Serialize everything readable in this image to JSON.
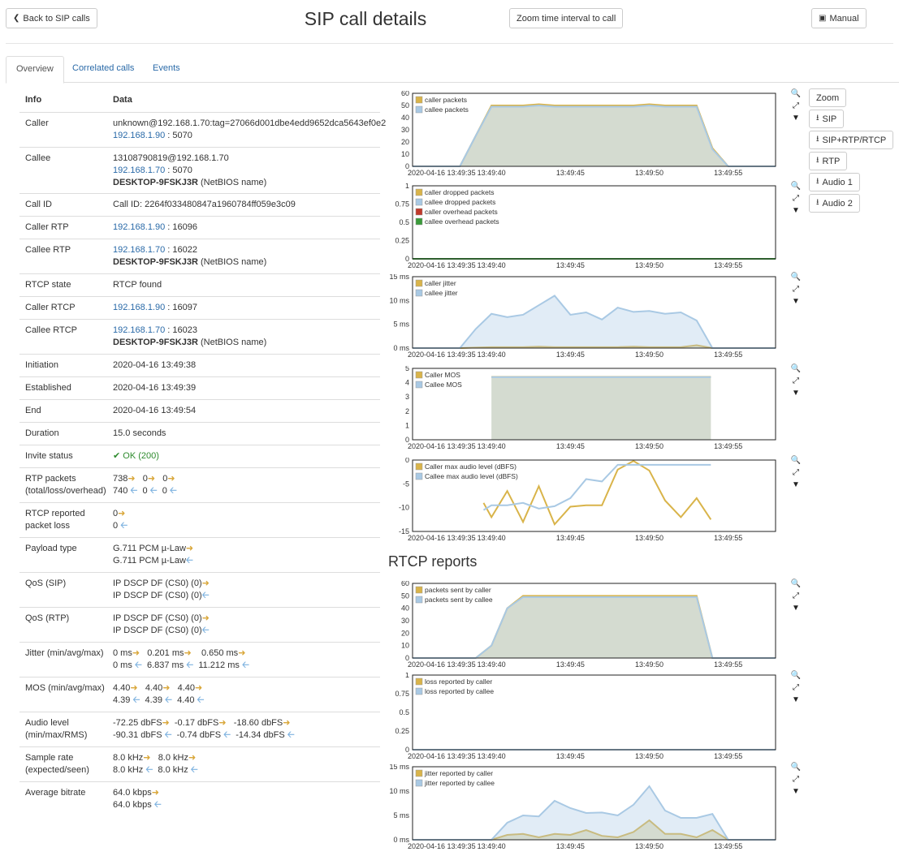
{
  "header": {
    "back_label": "Back to SIP calls",
    "title": "SIP call details",
    "zoom_label": "Zoom time interval to call",
    "manual_label": "Manual"
  },
  "tabs": [
    {
      "label": "Overview"
    },
    {
      "label": "Correlated calls"
    },
    {
      "label": "Events"
    }
  ],
  "info": {
    "head_key": "Info",
    "head_val": "Data",
    "caller": {
      "k": "Caller",
      "l1": "unknown@192.168.1.70:tag=27066d001dbe4edd9652dca5643ef0e2",
      "ip": "192.168.1.90",
      "port": " : 5070"
    },
    "callee": {
      "k": "Callee",
      "l1": "13108790819@192.168.1.70",
      "ip": "192.168.1.70",
      "port": " : 5070",
      "nb": "DESKTOP-9FSKJ3R",
      "nb_suffix": " (NetBIOS name)"
    },
    "callid": {
      "k": "Call ID",
      "v": "Call ID: 2264f033480847a1960784ff059e3c09"
    },
    "caller_rtp": {
      "k": "Caller RTP",
      "ip": "192.168.1.90",
      "port": " : 16096"
    },
    "callee_rtp": {
      "k": "Callee RTP",
      "ip": "192.168.1.70",
      "port": " : 16022",
      "nb": "DESKTOP-9FSKJ3R",
      "nb_suffix": " (NetBIOS name)"
    },
    "rtcp_state": {
      "k": "RTCP state",
      "v": "RTCP found"
    },
    "caller_rtcp": {
      "k": "Caller RTCP",
      "ip": "192.168.1.90",
      "port": " : 16097"
    },
    "callee_rtcp": {
      "k": "Callee RTCP",
      "ip": "192.168.1.70",
      "port": " : 16023",
      "nb": "DESKTOP-9FSKJ3R",
      "nb_suffix": " (NetBIOS name)"
    },
    "initiation": {
      "k": "Initiation",
      "v": "2020-04-16 13:49:38"
    },
    "established": {
      "k": "Established",
      "v": "2020-04-16 13:49:39"
    },
    "end": {
      "k": "End",
      "v": "2020-04-16 13:49:54"
    },
    "duration": {
      "k": "Duration",
      "v": "15.0 seconds"
    },
    "invite": {
      "k": "Invite status",
      "v": "OK (200)"
    },
    "rtp_packets": {
      "k1": "RTP packets",
      "k2": "(total/loss/overhead)",
      "r1": [
        "738",
        "0",
        "0"
      ],
      "r2": [
        "740",
        "0",
        "0"
      ]
    },
    "rtcp_loss": {
      "k1": "RTCP reported",
      "k2": "packet loss",
      "r1": [
        "0"
      ],
      "r2": [
        "0"
      ]
    },
    "payload": {
      "k": "Payload type",
      "r1": [
        "G.711 PCM µ-Law"
      ],
      "r2": [
        "G.711 PCM µ-Law"
      ]
    },
    "qos_sip": {
      "k": "QoS (SIP)",
      "r1": [
        "IP DSCP DF (CS0) (0)"
      ],
      "r2": [
        "IP DSCP DF (CS0) (0)"
      ]
    },
    "qos_rtp": {
      "k": "QoS (RTP)",
      "r1": [
        "IP DSCP DF (CS0) (0)"
      ],
      "r2": [
        "IP DSCP DF (CS0) (0)"
      ]
    },
    "jitter": {
      "k": "Jitter (min/avg/max)",
      "r1": [
        "0 ms",
        "0.201 ms",
        "0.650 ms"
      ],
      "r2": [
        "0 ms",
        "6.837 ms",
        "11.212 ms"
      ]
    },
    "mos": {
      "k": "MOS (min/avg/max)",
      "r1": [
        "4.40",
        "4.40",
        "4.40"
      ],
      "r2": [
        "4.39",
        "4.39",
        "4.40"
      ]
    },
    "audio": {
      "k1": "Audio level",
      "k2": "(min/max/RMS)",
      "r1": [
        "-72.25 dbFS",
        "-0.17 dbFS",
        "-18.60 dbFS"
      ],
      "r2": [
        "-90.31 dbFS",
        "-0.74 dbFS",
        "-14.34 dbFS"
      ]
    },
    "sample": {
      "k1": "Sample rate",
      "k2": "(expected/seen)",
      "r1": [
        "8.0 kHz",
        "8.0 kHz"
      ],
      "r2": [
        "8.0 kHz",
        "8.0 kHz"
      ]
    },
    "bitrate": {
      "k": "Average bitrate",
      "r1": [
        "64.0 kbps"
      ],
      "r2": [
        "64.0 kbps"
      ]
    }
  },
  "side_buttons": {
    "zoom": "Zoom",
    "sip": "SIP",
    "sip_rtp_rtcp": "SIP+RTP/RTCP",
    "rtp": "RTP",
    "audio1": "Audio 1",
    "audio2": "Audio 2"
  },
  "rtcp_title": "RTCP reports",
  "colors": {
    "caller": "#d9b44a",
    "callee": "#a9c9e4",
    "caller_overhead": "#c0392b",
    "callee_overhead": "#3a9a3a"
  },
  "chart_data": [
    {
      "type": "area",
      "x_start_label": "2020-04-16 13:49:35",
      "x_ticks": [
        "13:49:40",
        "13:49:45",
        "13:49:50",
        "13:49:55"
      ],
      "yticks": [
        "0",
        "10",
        "20",
        "30",
        "40",
        "50",
        "60"
      ],
      "ylim": [
        0,
        60
      ],
      "x": [
        35,
        36,
        37,
        38,
        39,
        40,
        41,
        42,
        43,
        44,
        45,
        46,
        47,
        48,
        49,
        50,
        51,
        52,
        53,
        54,
        55,
        56,
        57,
        58
      ],
      "series": [
        {
          "name": "caller packets",
          "values": [
            0,
            0,
            0,
            0,
            25,
            50,
            50,
            50,
            51,
            50,
            50,
            50,
            50,
            50,
            50,
            51,
            50,
            50,
            50,
            15,
            0,
            0,
            0,
            0
          ]
        },
        {
          "name": "callee packets",
          "values": [
            0,
            0,
            0,
            0,
            25,
            49,
            49,
            49,
            50,
            49,
            49,
            49,
            49,
            49,
            49,
            50,
            49,
            49,
            49,
            14,
            0,
            0,
            0,
            0
          ]
        }
      ]
    },
    {
      "type": "area",
      "x_start_label": "2020-04-16 13:49:35",
      "x_ticks": [
        "13:49:40",
        "13:49:45",
        "13:49:50",
        "13:49:55"
      ],
      "yticks": [
        "0",
        "0.25",
        "0.5",
        "0.75",
        "1"
      ],
      "ylim": [
        0,
        1
      ],
      "x": [
        35,
        58
      ],
      "series": [
        {
          "name": "caller dropped packets",
          "values": [
            0,
            0
          ]
        },
        {
          "name": "callee dropped packets",
          "values": [
            0,
            0
          ]
        },
        {
          "name": "caller overhead packets",
          "values": [
            0,
            0
          ]
        },
        {
          "name": "callee overhead packets",
          "values": [
            0,
            0
          ]
        }
      ]
    },
    {
      "type": "area",
      "x_start_label": "2020-04-16 13:49:35",
      "x_ticks": [
        "13:49:40",
        "13:49:45",
        "13:49:50",
        "13:49:55"
      ],
      "yticks": [
        "0 ms",
        "5 ms",
        "10 ms",
        "15 ms"
      ],
      "ylim": [
        0,
        15
      ],
      "x": [
        35,
        36,
        37,
        38,
        39,
        40,
        41,
        42,
        43,
        44,
        45,
        46,
        47,
        48,
        49,
        50,
        51,
        52,
        53,
        54,
        55,
        56,
        57,
        58
      ],
      "series": [
        {
          "name": "caller jitter",
          "values": [
            0,
            0,
            0,
            0,
            0.1,
            0.2,
            0.2,
            0.2,
            0.3,
            0.2,
            0.2,
            0.2,
            0.2,
            0.2,
            0.3,
            0.2,
            0.2,
            0.2,
            0.6,
            0,
            0,
            0,
            0,
            0
          ]
        },
        {
          "name": "callee jitter",
          "values": [
            0,
            0,
            0,
            0,
            4,
            7.2,
            6.5,
            7,
            9,
            11,
            7,
            7.5,
            6,
            8.5,
            7.6,
            7.8,
            7.2,
            7.5,
            5.8,
            0,
            0,
            0,
            0,
            0
          ]
        }
      ]
    },
    {
      "type": "area",
      "x_start_label": "2020-04-16 13:49:35",
      "x_ticks": [
        "13:49:40",
        "13:49:45",
        "13:49:50",
        "13:49:55"
      ],
      "yticks": [
        "0",
        "1",
        "2",
        "3",
        "4",
        "5"
      ],
      "ylim": [
        0,
        5
      ],
      "x": [
        40,
        53.9
      ],
      "series": [
        {
          "name": "Caller MOS",
          "values": [
            4.4,
            4.4
          ]
        },
        {
          "name": "Callee MOS",
          "values": [
            4.39,
            4.39
          ]
        }
      ]
    },
    {
      "type": "line",
      "x_start_label": "2020-04-16 13:49:35",
      "x_ticks": [
        "13:49:40",
        "13:49:45",
        "13:49:50",
        "13:49:55"
      ],
      "yticks": [
        "-15",
        "-10",
        "-5",
        "0"
      ],
      "ylim": [
        -15,
        0
      ],
      "x": [
        39.5,
        40,
        41,
        42,
        43,
        44,
        45,
        46,
        47,
        48,
        49,
        50,
        51,
        52,
        53,
        53.9
      ],
      "series": [
        {
          "name": "Caller max audio level (dBFS)",
          "values": [
            -9,
            -12,
            -6.5,
            -13,
            -5.5,
            -13.5,
            -9.8,
            -9.5,
            -9.5,
            -2,
            -0.2,
            -2.2,
            -8.5,
            -12,
            -8,
            -12.5
          ]
        },
        {
          "name": "Callee max audio level (dBFS)",
          "values": [
            -10.5,
            -9.5,
            -9.5,
            -9,
            -10.2,
            -9.7,
            -8,
            -4,
            -4.5,
            -1,
            -1,
            -1,
            -1,
            -1,
            -1,
            -1
          ]
        }
      ]
    },
    {
      "type": "area",
      "x_start_label": "2020-04-16 13:49:35",
      "x_ticks": [
        "13:49:40",
        "13:49:45",
        "13:49:50",
        "13:49:55"
      ],
      "yticks": [
        "0",
        "10",
        "20",
        "30",
        "40",
        "50",
        "60"
      ],
      "ylim": [
        0,
        60
      ],
      "x": [
        35,
        36,
        37,
        38,
        39,
        40,
        41,
        42,
        43,
        44,
        45,
        46,
        47,
        48,
        49,
        50,
        51,
        52,
        53,
        54,
        55,
        56,
        57,
        58
      ],
      "series": [
        {
          "name": "packets sent by caller",
          "values": [
            0,
            0,
            0,
            0,
            0,
            10,
            40,
            50,
            50,
            50,
            50,
            50,
            50,
            50,
            50,
            50,
            50,
            50,
            50,
            0,
            0,
            0,
            0,
            0
          ]
        },
        {
          "name": "packets sent by callee",
          "values": [
            0,
            0,
            0,
            0,
            0,
            10,
            40,
            49,
            49,
            49,
            49,
            49,
            49,
            49,
            49,
            49,
            49,
            49,
            49,
            0,
            0,
            0,
            0,
            0
          ]
        }
      ]
    },
    {
      "type": "area",
      "x_start_label": "2020-04-16 13:49:35",
      "x_ticks": [
        "13:49:40",
        "13:49:45",
        "13:49:50",
        "13:49:55"
      ],
      "yticks": [
        "0",
        "0.25",
        "0.5",
        "0.75",
        "1"
      ],
      "ylim": [
        0,
        1
      ],
      "x": [
        35,
        58
      ],
      "series": [
        {
          "name": "loss reported by caller",
          "values": [
            0,
            0
          ]
        },
        {
          "name": "loss reported by callee",
          "values": [
            0,
            0
          ]
        }
      ]
    },
    {
      "type": "area",
      "x_start_label": "2020-04-16 13:49:35",
      "x_ticks": [
        "13:49:40",
        "13:49:45",
        "13:49:50",
        "13:49:55"
      ],
      "yticks": [
        "0 ms",
        "5 ms",
        "10 ms",
        "15 ms"
      ],
      "ylim": [
        0,
        15
      ],
      "x": [
        35,
        36,
        37,
        38,
        39,
        40,
        41,
        42,
        43,
        44,
        45,
        46,
        47,
        48,
        49,
        50,
        51,
        52,
        53,
        54,
        55,
        56,
        57,
        58
      ],
      "series": [
        {
          "name": "jitter reported by caller",
          "values": [
            0,
            0,
            0,
            0,
            0,
            0,
            1,
            1.2,
            0.5,
            1.2,
            1,
            2,
            0.8,
            0.5,
            1.6,
            4,
            1.2,
            1.2,
            0.5,
            2,
            0,
            0,
            0,
            0
          ]
        },
        {
          "name": "jitter reported by callee",
          "values": [
            0,
            0,
            0,
            0,
            0,
            0,
            3.5,
            5,
            4.8,
            8,
            6.5,
            5.5,
            5.6,
            5,
            7.2,
            11,
            6,
            4.5,
            4.5,
            5.3,
            0,
            0,
            0,
            0
          ]
        }
      ]
    }
  ]
}
